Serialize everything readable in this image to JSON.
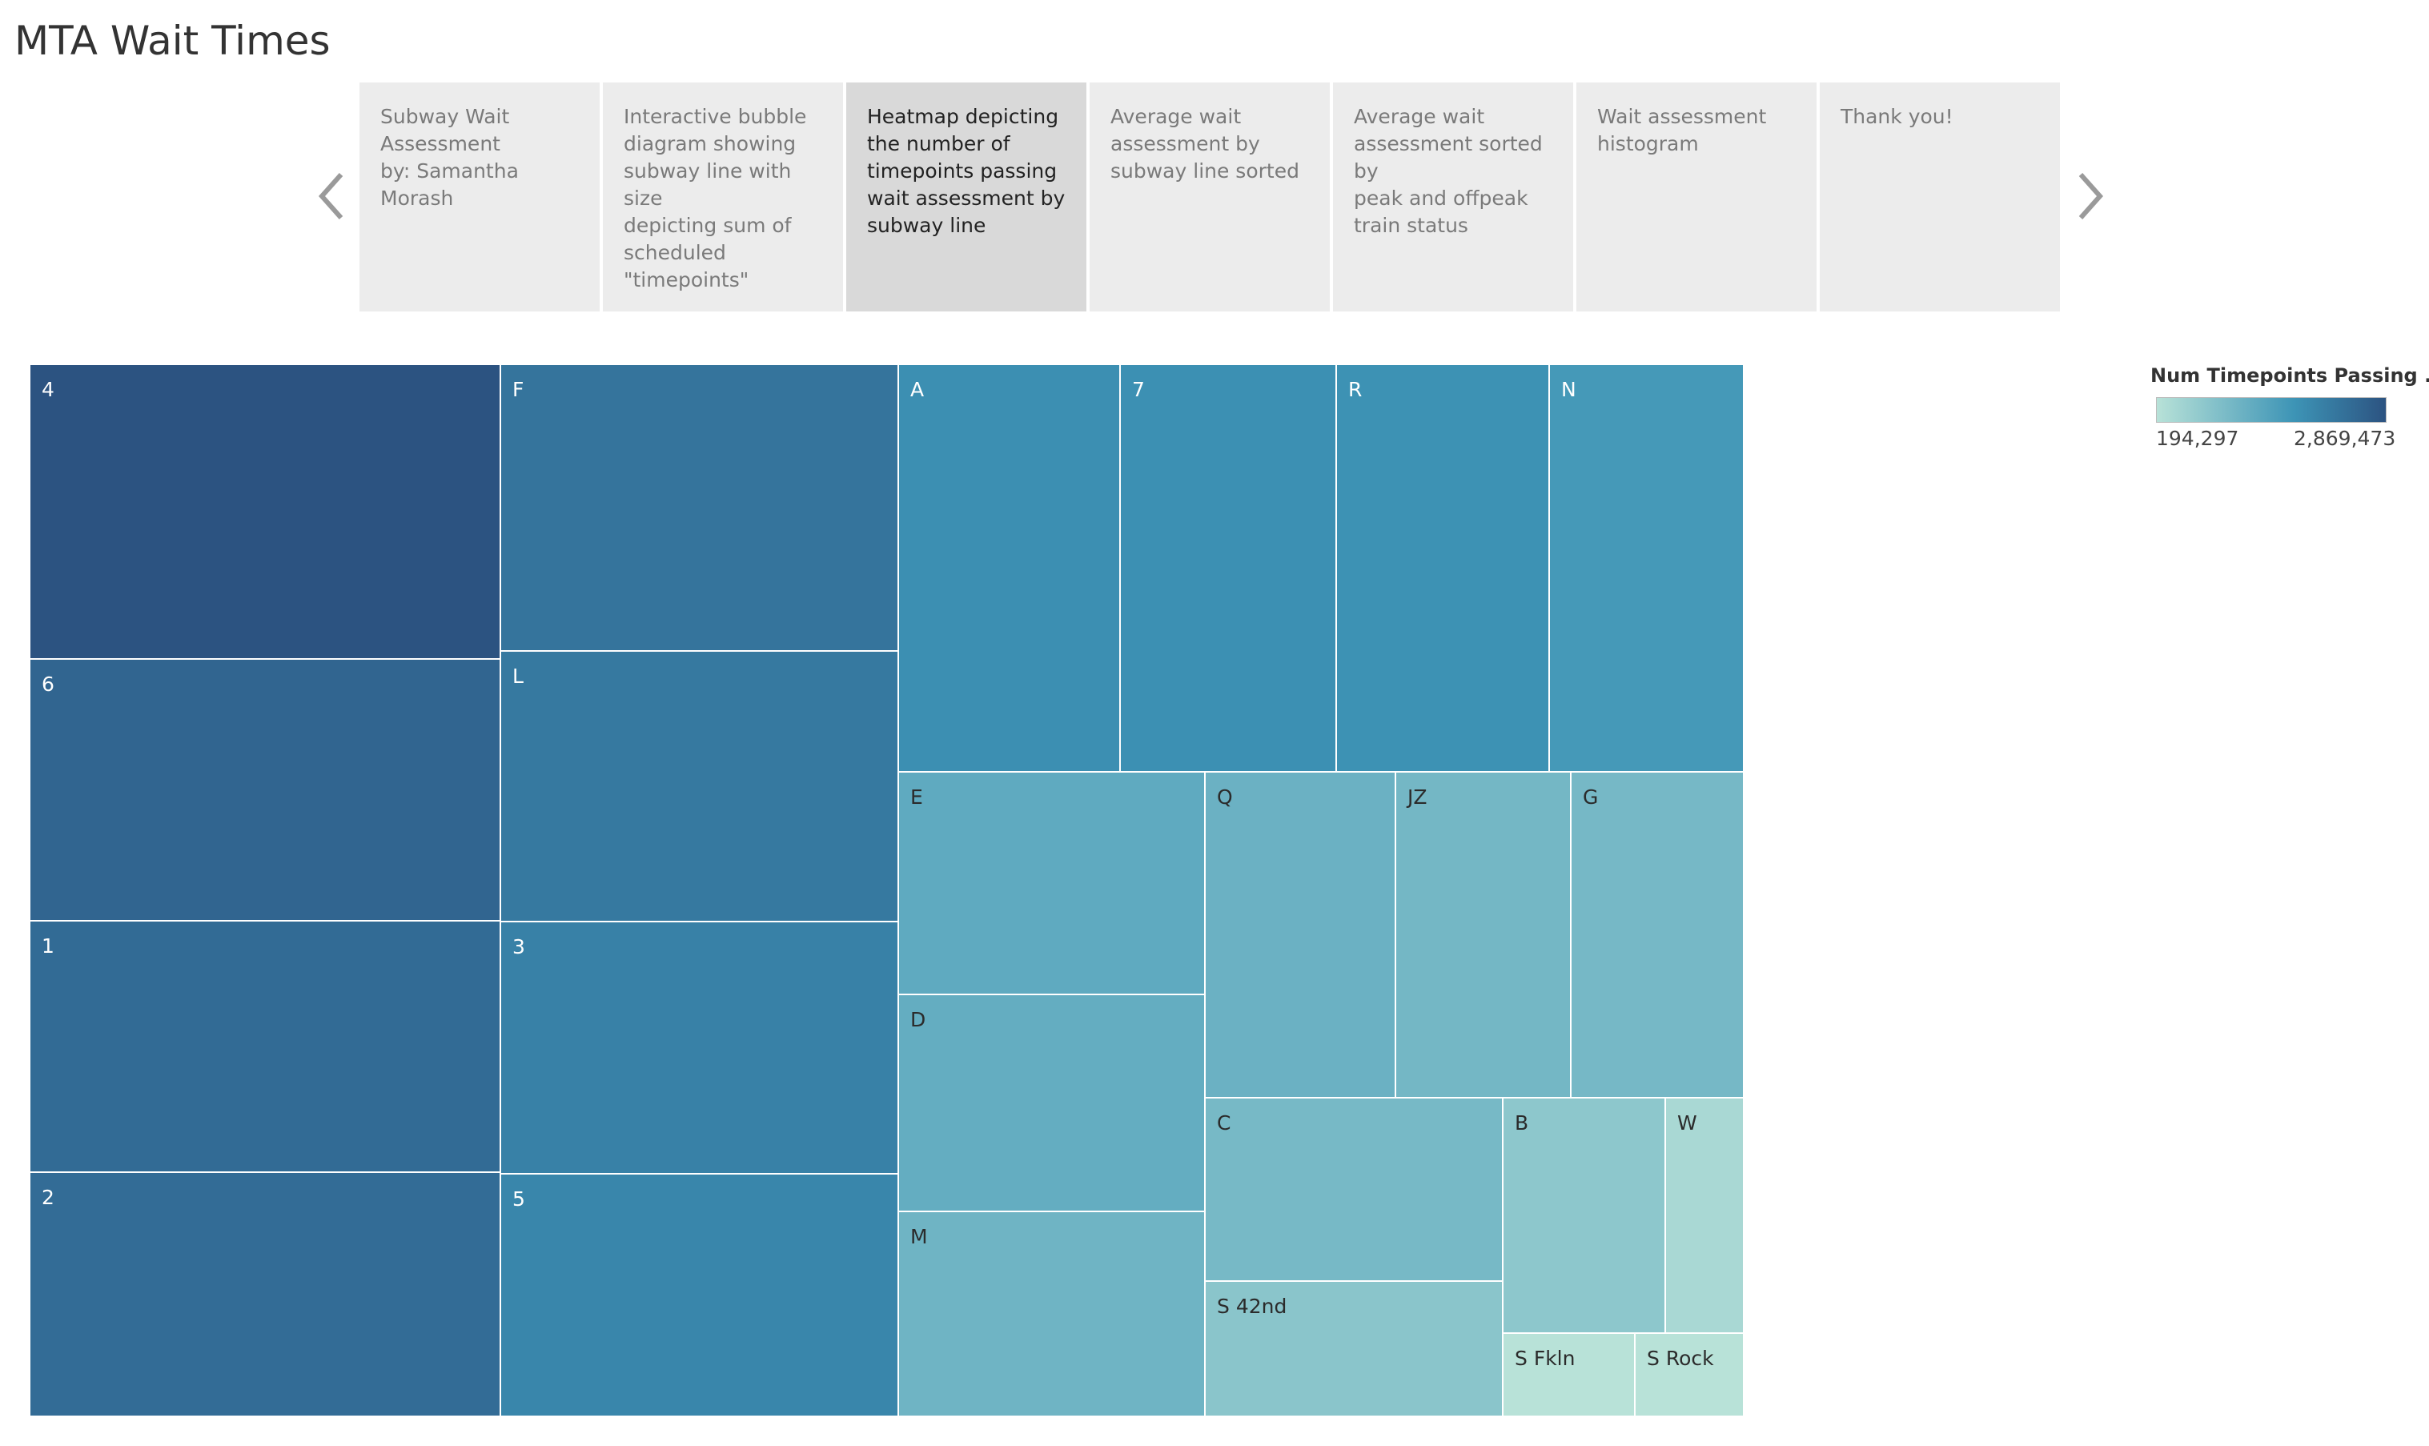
{
  "page": {
    "title": "MTA Wait Times"
  },
  "story": {
    "points": [
      "Subway Wait\nAssessment\nby: Samantha Morash",
      "Interactive bubble\ndiagram showing\nsubway line with size\ndepicting sum of\nscheduled\n\"timepoints\"",
      "Heatmap depicting\nthe number of\ntimepoints passing\nwait assessment by\nsubway line",
      "Average wait\nassessment by\nsubway line sorted",
      "Average wait\nassessment sorted by\npeak and offpeak\ntrain status",
      "Wait assessment\nhistogram",
      "Thank you!"
    ],
    "active_index": 2
  },
  "icons": {
    "prev": "chevron-left-icon",
    "next": "chevron-right-icon"
  },
  "colors": {
    "low": "#b8e2d8",
    "mid": "#3d94b6",
    "high": "#2c5381",
    "active_tab": "#d9d9d9"
  },
  "legend": {
    "title": "Num Timepoints Passing ..",
    "min_label": "194,297",
    "max_label": "2,869,473",
    "min": 194297,
    "max": 2869473
  },
  "chart_data": {
    "type": "heatmap",
    "measure": "Num Timepoints Passing ..",
    "series": [
      {
        "name": "4",
        "value": 2869473
      },
      {
        "name": "6",
        "value": 2570000
      },
      {
        "name": "1",
        "value": 2470000
      },
      {
        "name": "2",
        "value": 2450000
      },
      {
        "name": "F",
        "value": 2320000
      },
      {
        "name": "L",
        "value": 2240000
      },
      {
        "name": "3",
        "value": 2110000
      },
      {
        "name": "5",
        "value": 2030000
      },
      {
        "name": "A",
        "value": 1880000
      },
      {
        "name": "7",
        "value": 1860000
      },
      {
        "name": "R",
        "value": 1830000
      },
      {
        "name": "N",
        "value": 1700000
      },
      {
        "name": "E",
        "value": 1350000
      },
      {
        "name": "D",
        "value": 1290000
      },
      {
        "name": "M",
        "value": 1150000
      },
      {
        "name": "Q",
        "value": 1200000
      },
      {
        "name": "JZ",
        "value": 1080000
      },
      {
        "name": "G",
        "value": 1060000
      },
      {
        "name": "C",
        "value": 1040000
      },
      {
        "name": "S 42nd",
        "value": 800000
      },
      {
        "name": "B",
        "value": 760000
      },
      {
        "name": "W",
        "value": 390000
      },
      {
        "name": "S Fkln",
        "value": 200000
      },
      {
        "name": "S Rock",
        "value": 194297
      }
    ]
  }
}
